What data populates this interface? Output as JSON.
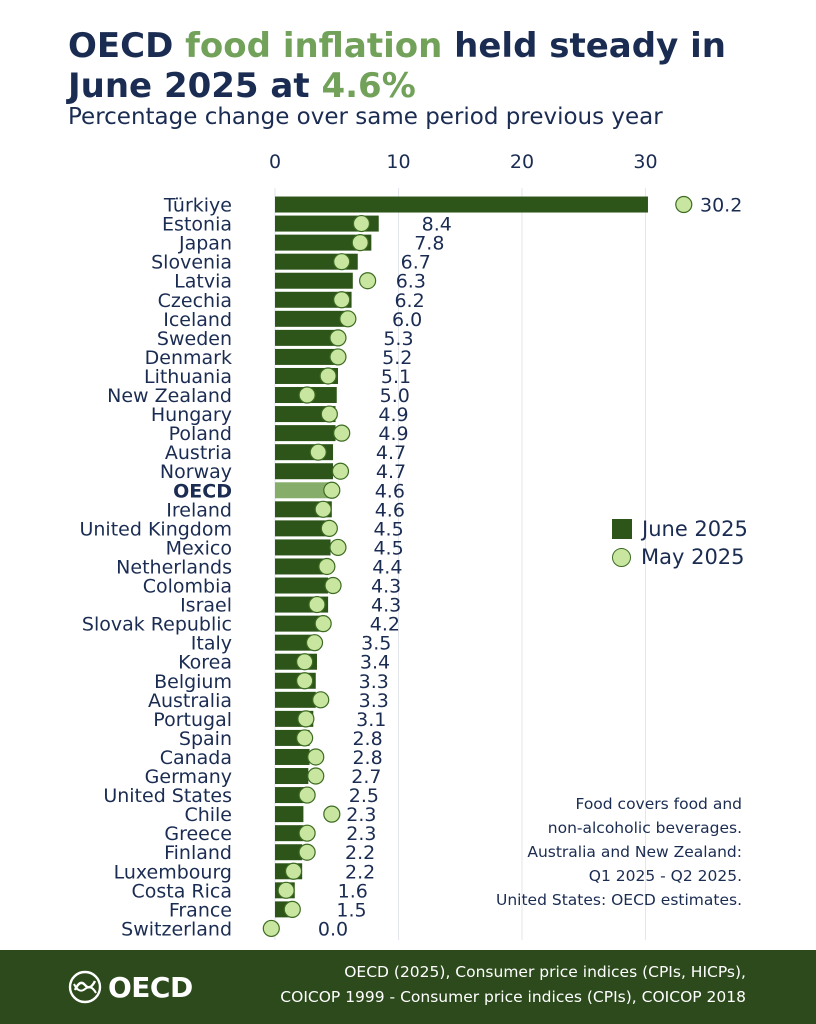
{
  "header": {
    "title_part1": "OECD ",
    "title_highlight1": "food inflation",
    "title_part2": " held steady in June 2025 at ",
    "title_highlight2": "4.6%",
    "subtitle": "Percentage change over same period previous year"
  },
  "colors": {
    "june_bar": "#2e5519",
    "oecd_bar": "#86ad6a",
    "may_dot": "#c8e6a0",
    "title_highlight": "#72a15a",
    "footer_bg": "#2c4a1c"
  },
  "note": [
    "Food covers food and",
    "non-alcoholic beverages.",
    "Australia and New Zealand:",
    "Q1 2025 - Q2 2025.",
    "United States: OECD estimates."
  ],
  "footer": {
    "logo_text": "OECD",
    "source_line1": "OECD (2025), Consumer price indices (CPIs, HICPs),",
    "source_line2": "COICOP 1999 - Consumer price indices (CPIs), COICOP 2018"
  },
  "chart_data": {
    "type": "bar",
    "orientation": "horizontal",
    "xlim": [
      0,
      32
    ],
    "x_ticks": [
      "0",
      "10",
      "20",
      "30"
    ],
    "grid": true,
    "legend_position": "right",
    "highlight_category": "OECD",
    "categories": [
      "Türkiye",
      "Estonia",
      "Japan",
      "Slovenia",
      "Latvia",
      "Czechia",
      "Iceland",
      "Sweden",
      "Denmark",
      "Lithuania",
      "New Zealand",
      "Hungary",
      "Poland",
      "Austria",
      "Norway",
      "OECD",
      "Ireland",
      "United Kingdom",
      "Mexico",
      "Netherlands",
      "Colombia",
      "Israel",
      "Slovak Republic",
      "Italy",
      "Korea",
      "Belgium",
      "Australia",
      "Portugal",
      "Spain",
      "Canada",
      "Germany",
      "United States",
      "Chile",
      "Greece",
      "Finland",
      "Luxembourg",
      "Costa Rica",
      "France",
      "Switzerland"
    ],
    "series": [
      {
        "name": "June 2025",
        "type": "bar",
        "values": [
          30.2,
          8.4,
          7.8,
          6.7,
          6.3,
          6.2,
          6.0,
          5.3,
          5.2,
          5.1,
          5.0,
          4.9,
          4.9,
          4.7,
          4.7,
          4.6,
          4.6,
          4.5,
          4.5,
          4.4,
          4.3,
          4.3,
          4.2,
          3.5,
          3.4,
          3.3,
          3.3,
          3.1,
          2.8,
          2.8,
          2.7,
          2.5,
          2.3,
          2.3,
          2.2,
          2.2,
          1.6,
          1.5,
          0.0
        ],
        "labels": [
          "30.2",
          "8.4",
          "7.8",
          "6.7",
          "6.3",
          "6.2",
          "6.0",
          "5.3",
          "5.2",
          "5.1",
          "5.0",
          "4.9",
          "4.9",
          "4.7",
          "4.7",
          "4.6",
          "4.6",
          "4.5",
          "4.5",
          "4.4",
          "4.3",
          "4.3",
          "4.2",
          "3.5",
          "3.4",
          "3.3",
          "3.3",
          "3.1",
          "2.8",
          "2.8",
          "2.7",
          "2.5",
          "2.3",
          "2.3",
          "2.2",
          "2.2",
          "1.6",
          "1.5",
          "0.0"
        ]
      },
      {
        "name": "May 2025",
        "type": "dot",
        "values": [
          33.1,
          7.0,
          6.9,
          5.4,
          7.5,
          5.4,
          5.9,
          5.1,
          5.1,
          4.3,
          2.6,
          4.4,
          5.4,
          3.5,
          5.3,
          4.6,
          3.9,
          4.4,
          5.1,
          4.2,
          4.7,
          3.4,
          3.9,
          3.2,
          2.4,
          2.4,
          3.7,
          2.5,
          2.4,
          3.3,
          3.3,
          2.6,
          4.6,
          2.6,
          2.6,
          1.5,
          0.9,
          1.4,
          -0.3
        ]
      }
    ]
  }
}
